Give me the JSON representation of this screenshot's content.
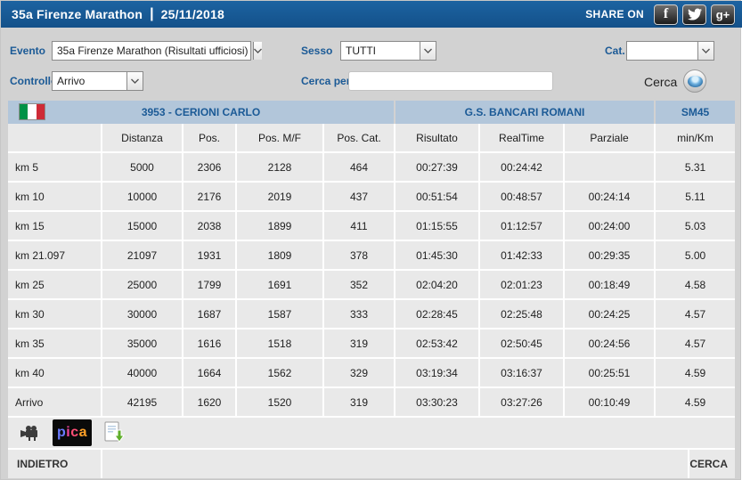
{
  "header": {
    "title": "35a Firenze Marathon",
    "separator": "|",
    "date": "25/11/2018",
    "share_label": "SHARE ON",
    "social": {
      "facebook_glyph": "f",
      "googleplus_glyph": "g+"
    }
  },
  "filters": {
    "evento": {
      "label": "Evento",
      "value": "35a Firenze Marathon (Risultati ufficiosi)"
    },
    "sesso": {
      "label": "Sesso",
      "value": "TUTTI"
    },
    "cat": {
      "label": "Cat.",
      "value": ""
    },
    "controllo": {
      "label": "Controllo",
      "value": "Arrivo"
    },
    "cerca_per": {
      "label": "Cerca per",
      "value": ""
    },
    "cerca": {
      "label": "Cerca"
    }
  },
  "athlete": {
    "bib_name": "3953 - CERIONI CARLO",
    "club": "G.S. BANCARI ROMANI",
    "category": "SM45"
  },
  "table": {
    "columns": [
      "",
      "Distanza",
      "Pos.",
      "Pos. M/F",
      "Pos. Cat.",
      "Risultato",
      "RealTime",
      "Parziale",
      "min/Km"
    ],
    "rows": [
      [
        "km 5",
        "5000",
        "2306",
        "2128",
        "464",
        "00:27:39",
        "00:24:42",
        "",
        "5.31"
      ],
      [
        "km 10",
        "10000",
        "2176",
        "2019",
        "437",
        "00:51:54",
        "00:48:57",
        "00:24:14",
        "5.11"
      ],
      [
        "km 15",
        "15000",
        "2038",
        "1899",
        "411",
        "01:15:55",
        "01:12:57",
        "00:24:00",
        "5.03"
      ],
      [
        "km 21.097",
        "21097",
        "1931",
        "1809",
        "378",
        "01:45:30",
        "01:42:33",
        "00:29:35",
        "5.00"
      ],
      [
        "km 25",
        "25000",
        "1799",
        "1691",
        "352",
        "02:04:20",
        "02:01:23",
        "00:18:49",
        "4.58"
      ],
      [
        "km 30",
        "30000",
        "1687",
        "1587",
        "333",
        "02:28:45",
        "02:25:48",
        "00:24:25",
        "4.57"
      ],
      [
        "km 35",
        "35000",
        "1616",
        "1518",
        "319",
        "02:53:42",
        "02:50:45",
        "00:24:56",
        "4.57"
      ],
      [
        "km 40",
        "40000",
        "1664",
        "1562",
        "329",
        "03:19:34",
        "03:16:37",
        "00:25:51",
        "4.59"
      ],
      [
        "Arrivo",
        "42195",
        "1620",
        "1520",
        "319",
        "03:30:23",
        "03:27:26",
        "00:10:49",
        "4.59"
      ]
    ]
  },
  "footer": {
    "pica_letters": [
      "p",
      "i",
      "c",
      "a"
    ],
    "back_label": "INDIETRO",
    "search_label": "CERCA"
  },
  "colors": {
    "header_blue": "#175a96",
    "label_blue": "#1b5a96",
    "athlete_bar": "#b2c6da",
    "cell_gray": "#e9e9e9",
    "page_gray": "#d2d2d2"
  }
}
